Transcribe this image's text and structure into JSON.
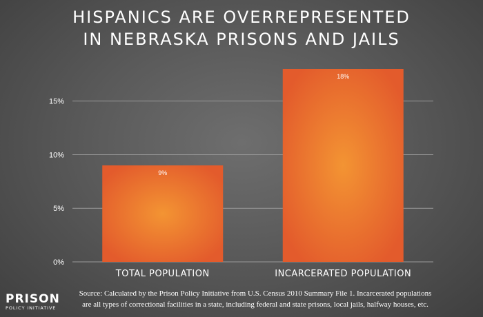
{
  "title_line1": "HISPANICS ARE OVERREPRESENTED",
  "title_line2": "IN NEBRASKA PRISONS AND JAILS",
  "logo": {
    "line1": "PRISON",
    "line2": "POLICY INITIATIVE"
  },
  "source_line1": "Source: Calculated by the Prison Policy Initiative from U.S. Census 2010 Summary File 1. Incarcerated populations",
  "source_line2": "are all types of correctional facilities in a state, including federal and state prisons, local jails, halfway houses, etc.",
  "colors": {
    "bar_center": "#f39433",
    "bar_edge": "#e35b2c",
    "grid": "#9a9a9a"
  },
  "chart_data": {
    "type": "bar",
    "categories": [
      "TOTAL POPULATION",
      "INCARCERATED POPULATION"
    ],
    "values": [
      9,
      18
    ],
    "data_labels": [
      "9%",
      "18%"
    ],
    "yticks": [
      0,
      5,
      10,
      15
    ],
    "ytick_labels": [
      "0%",
      "5%",
      "10%",
      "15%"
    ],
    "ylim": [
      0,
      18
    ],
    "grid": true
  }
}
